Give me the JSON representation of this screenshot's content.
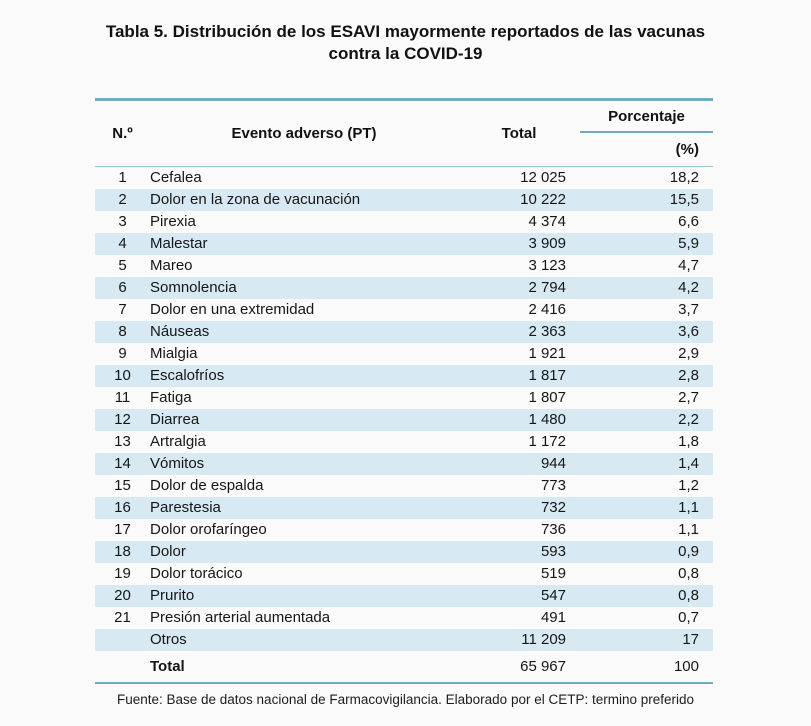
{
  "page": {
    "title_lines": [
      "Tabla 5. Distribución de los ESAVI mayormente reportados de las vacunas",
      "contra la COVID-19"
    ],
    "footer": "Fuente: Base de datos nacional de Farmacovigilancia.  Elaborado por el CETP: termino preferido"
  },
  "colors": {
    "accent_rule": "#72abbe",
    "header_divider": "#9cc6d4",
    "row_stripe": "#d7eaf3"
  },
  "table": {
    "columns": {
      "num": "N.º",
      "event": "Evento adverso (PT)",
      "total": "Total",
      "pct_group": "Porcentaje",
      "pct_unit": "(%)"
    },
    "rows": [
      {
        "n": "1",
        "event": "Cefalea",
        "total": "12 025",
        "pct": "18,2"
      },
      {
        "n": "2",
        "event": "Dolor en la zona de vacunación",
        "total": "10 222",
        "pct": "15,5"
      },
      {
        "n": "3",
        "event": "Pirexia",
        "total": "4 374",
        "pct": "6,6"
      },
      {
        "n": "4",
        "event": "Malestar",
        "total": "3 909",
        "pct": "5,9"
      },
      {
        "n": "5",
        "event": "Mareo",
        "total": "3 123",
        "pct": "4,7"
      },
      {
        "n": "6",
        "event": "Somnolencia",
        "total": "2 794",
        "pct": "4,2"
      },
      {
        "n": "7",
        "event": "Dolor en una extremidad",
        "total": "2 416",
        "pct": "3,7"
      },
      {
        "n": "8",
        "event": "Náuseas",
        "total": "2 363",
        "pct": "3,6"
      },
      {
        "n": "9",
        "event": "Mialgia",
        "total": "1 921",
        "pct": "2,9"
      },
      {
        "n": "10",
        "event": "Escalofríos",
        "total": "1 817",
        "pct": "2,8"
      },
      {
        "n": "11",
        "event": "Fatiga",
        "total": "1 807",
        "pct": "2,7"
      },
      {
        "n": "12",
        "event": "Diarrea",
        "total": "1 480",
        "pct": "2,2"
      },
      {
        "n": "13",
        "event": "Artralgia",
        "total": "1 172",
        "pct": "1,8"
      },
      {
        "n": "14",
        "event": "Vómitos",
        "total": "944",
        "pct": "1,4"
      },
      {
        "n": "15",
        "event": "Dolor de espalda",
        "total": "773",
        "pct": "1,2"
      },
      {
        "n": "16",
        "event": "Parestesia",
        "total": "732",
        "pct": "1,1"
      },
      {
        "n": "17",
        "event": "Dolor orofaríngeo",
        "total": "736",
        "pct": "1,1"
      },
      {
        "n": "18",
        "event": "Dolor",
        "total": "593",
        "pct": "0,9"
      },
      {
        "n": "19",
        "event": "Dolor torácico",
        "total": "519",
        "pct": "0,8"
      },
      {
        "n": "20",
        "event": "Prurito",
        "total": "547",
        "pct": "0,8"
      },
      {
        "n": "21",
        "event": "Presión arterial aumentada",
        "total": "491",
        "pct": "0,7"
      },
      {
        "n": "",
        "event": "Otros",
        "total": "11 209",
        "pct": "17"
      }
    ],
    "total_row": {
      "label": "Total",
      "total": "65 967",
      "pct": "100"
    }
  }
}
